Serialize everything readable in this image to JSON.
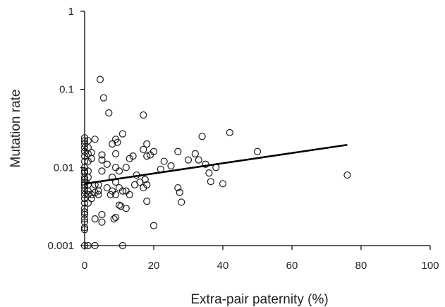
{
  "chart_data": {
    "type": "scatter",
    "title": "",
    "xlabel": "Extra-pair paternity (%)",
    "ylabel": "Mutation rate",
    "xlim": [
      0,
      100
    ],
    "ylim": [
      0.001,
      1
    ],
    "y_scale": "log",
    "grid": false,
    "legend": "none",
    "x_ticks": [
      0,
      20,
      40,
      60,
      80,
      100
    ],
    "x_tick_labels": [
      "0",
      "20",
      "40",
      "60",
      "80",
      "100"
    ],
    "y_ticks": [
      0.001,
      0.01,
      0.1,
      1
    ],
    "y_tick_labels": [
      "0.001",
      "0.01",
      "0.1",
      "1"
    ],
    "marker": "open-circle",
    "colors": {
      "marker": "#1a1a1a",
      "axis": "#000000",
      "trendline": "#000000"
    },
    "series": [
      {
        "values": [
          [
            0,
            0.024
          ],
          [
            0,
            0.022
          ],
          [
            0,
            0.02
          ],
          [
            0,
            0.018
          ],
          [
            0,
            0.016
          ],
          [
            0,
            0.014
          ],
          [
            0,
            0.012
          ],
          [
            0,
            0.01
          ],
          [
            0,
            0.009
          ],
          [
            0,
            0.0085
          ],
          [
            0,
            0.0075
          ],
          [
            0,
            0.007
          ],
          [
            0,
            0.0065
          ],
          [
            0,
            0.006
          ],
          [
            0,
            0.0055
          ],
          [
            0,
            0.005
          ],
          [
            0,
            0.0045
          ],
          [
            0,
            0.004
          ],
          [
            0,
            0.0035
          ],
          [
            0,
            0.003
          ],
          [
            0,
            0.0027
          ],
          [
            0,
            0.0025
          ],
          [
            0,
            0.0022
          ],
          [
            0,
            0.002
          ],
          [
            0,
            0.0017
          ],
          [
            0,
            0.0016
          ],
          [
            0,
            0.001
          ],
          [
            1,
            0.022
          ],
          [
            1,
            0.018
          ],
          [
            1,
            0.015
          ],
          [
            1,
            0.012
          ],
          [
            1,
            0.009
          ],
          [
            1,
            0.0075
          ],
          [
            1,
            0.006
          ],
          [
            1,
            0.005
          ],
          [
            1,
            0.0045
          ],
          [
            1,
            0.0035
          ],
          [
            1,
            0.001
          ],
          [
            2,
            0.0155
          ],
          [
            2,
            0.013
          ],
          [
            2,
            0.0045
          ],
          [
            2,
            0.004
          ],
          [
            3,
            0.023
          ],
          [
            3,
            0.006
          ],
          [
            3,
            0.0048
          ],
          [
            3,
            0.0022
          ],
          [
            3,
            0.001
          ],
          [
            4,
            0.006
          ],
          [
            4,
            0.005
          ],
          [
            4,
            0.0045
          ],
          [
            4.5,
            0.134
          ],
          [
            5,
            0.0145
          ],
          [
            5,
            0.0125
          ],
          [
            5,
            0.009
          ],
          [
            5,
            0.0025
          ],
          [
            5,
            0.002
          ],
          [
            5.5,
            0.078
          ],
          [
            6.5,
            0.011
          ],
          [
            6.5,
            0.0055
          ],
          [
            7,
            0.05
          ],
          [
            7.5,
            0.0045
          ],
          [
            8,
            0.02
          ],
          [
            8,
            0.0075
          ],
          [
            8,
            0.005
          ],
          [
            8.5,
            0.0022
          ],
          [
            9,
            0.023
          ],
          [
            9,
            0.015
          ],
          [
            9,
            0.01
          ],
          [
            9,
            0.0065
          ],
          [
            9,
            0.0045
          ],
          [
            9,
            0.0023
          ],
          [
            9.5,
            0.021
          ],
          [
            10,
            0.009
          ],
          [
            10,
            0.0055
          ],
          [
            10,
            0.0033
          ],
          [
            10.5,
            0.0032
          ],
          [
            11,
            0.027
          ],
          [
            11,
            0.005
          ],
          [
            11,
            0.001
          ],
          [
            12,
            0.01
          ],
          [
            12,
            0.005
          ],
          [
            12,
            0.003
          ],
          [
            13,
            0.013
          ],
          [
            13,
            0.0045
          ],
          [
            14,
            0.014
          ],
          [
            14.5,
            0.006
          ],
          [
            15,
            0.008
          ],
          [
            16,
            0.0065
          ],
          [
            17,
            0.047
          ],
          [
            17,
            0.017
          ],
          [
            17,
            0.0055
          ],
          [
            17.5,
            0.007
          ],
          [
            18,
            0.02
          ],
          [
            18,
            0.014
          ],
          [
            18,
            0.006
          ],
          [
            18,
            0.0037
          ],
          [
            19,
            0.0145
          ],
          [
            20,
            0.016
          ],
          [
            20,
            0.0018
          ],
          [
            22,
            0.0095
          ],
          [
            23,
            0.012
          ],
          [
            25,
            0.0105
          ],
          [
            27,
            0.016
          ],
          [
            27,
            0.0055
          ],
          [
            27.5,
            0.0048
          ],
          [
            28,
            0.0036
          ],
          [
            30,
            0.0125
          ],
          [
            32,
            0.015
          ],
          [
            33,
            0.0125
          ],
          [
            34,
            0.025
          ],
          [
            35,
            0.011
          ],
          [
            36,
            0.0085
          ],
          [
            36.5,
            0.0066
          ],
          [
            38,
            0.01
          ],
          [
            40,
            0.0062
          ],
          [
            42,
            0.028
          ],
          [
            50,
            0.016
          ],
          [
            76,
            0.008
          ]
        ]
      }
    ],
    "trendline": {
      "x": [
        0,
        76
      ],
      "y": [
        0.0062,
        0.0195
      ]
    }
  }
}
